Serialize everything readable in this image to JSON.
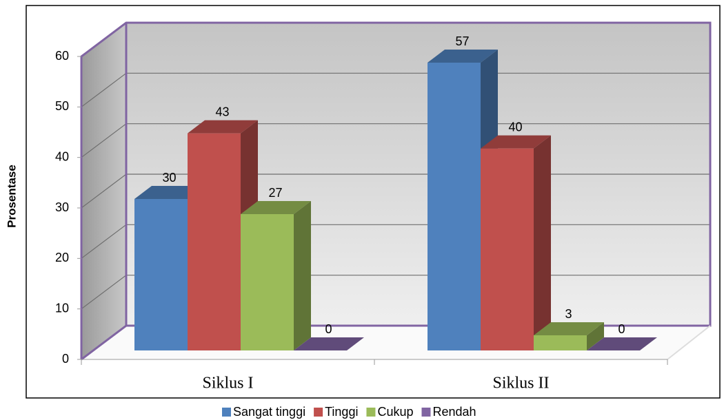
{
  "chart_data": {
    "type": "bar3d",
    "ylabel": "Prosentase",
    "categories": [
      "Siklus I",
      "Siklus II"
    ],
    "series": [
      {
        "name": "Sangat tinggi",
        "color": "#4f81bd",
        "values": [
          30,
          57
        ]
      },
      {
        "name": "Tinggi",
        "color": "#c0504d",
        "values": [
          43,
          40
        ]
      },
      {
        "name": "Cukup",
        "color": "#9bbb59",
        "values": [
          27,
          3
        ]
      },
      {
        "name": "Rendah",
        "color": "#8064a2",
        "values": [
          0,
          0
        ]
      }
    ],
    "ylim": [
      0,
      60
    ],
    "yticks": [
      0,
      10,
      20,
      30,
      40,
      50,
      60
    ],
    "grid": true,
    "legend": "bottom"
  }
}
